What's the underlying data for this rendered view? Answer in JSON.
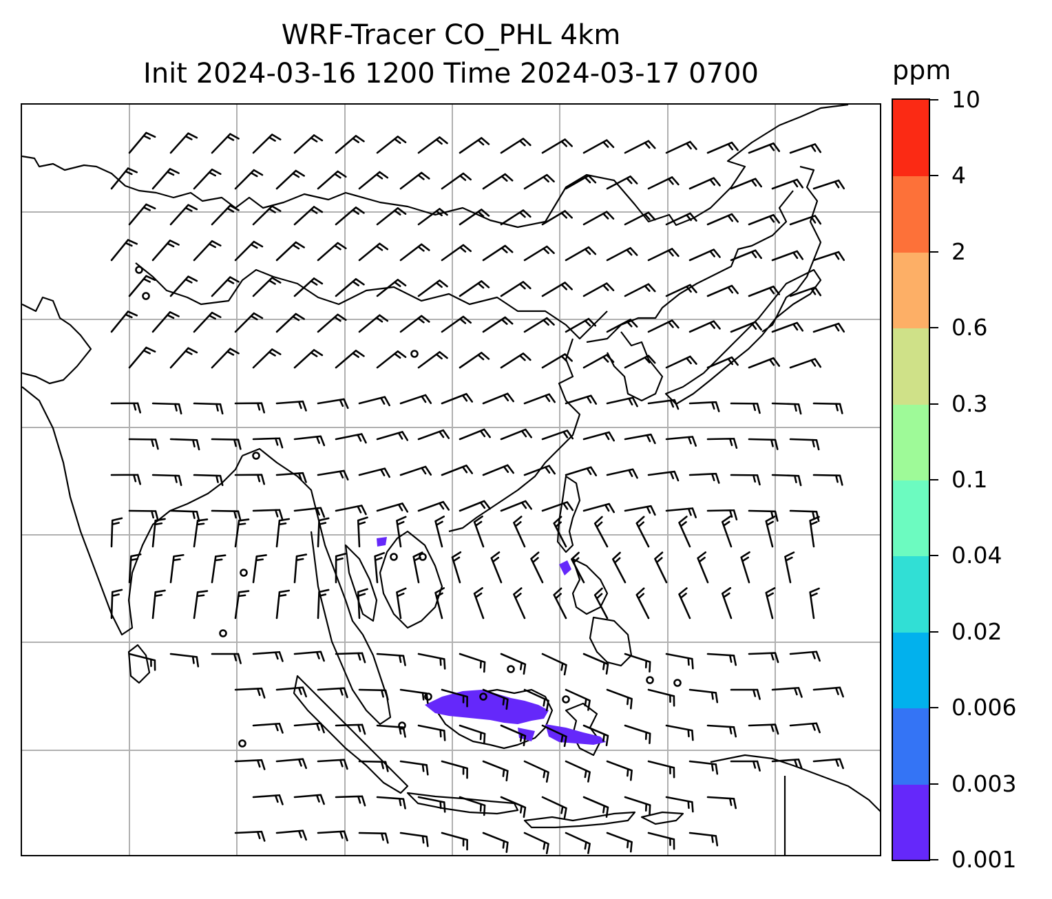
{
  "title": {
    "line1": "WRF-Tracer CO_PHL 4km",
    "line2": "Init 2024-03-16 1200 Time 2024-03-17 0700"
  },
  "colorbar": {
    "unit": "ppm",
    "ticks": [
      "0.001",
      "0.003",
      "0.006",
      "0.02",
      "0.04",
      "0.1",
      "0.3",
      "0.6",
      "2",
      "4",
      "10"
    ],
    "colors": [
      "#6528fa",
      "#3474f5",
      "#02b1ed",
      "#31dfd5",
      "#6cfbc0",
      "#9efa98",
      "#cfe188",
      "#fdaf66",
      "#fd7139",
      "#fb2a14"
    ]
  },
  "map": {
    "gridlines": "on",
    "gridline_color": "#b0b0b0",
    "coastline_color": "#000000",
    "tracer_color": "#6528fa",
    "wind_barbs": "on"
  }
}
